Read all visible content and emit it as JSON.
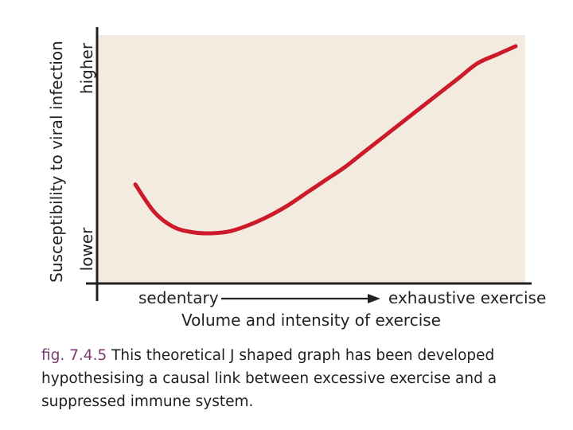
{
  "chart_data": {
    "type": "line",
    "title": "",
    "ylabel": "Susceptibility to viral infection",
    "ylabel_high": "higher",
    "ylabel_low": "lower",
    "xlabel": "Volume and intensity of exercise",
    "xlabel_left": "sedentary",
    "xlabel_right": "exhaustive exercise",
    "xlim": [
      0,
      100
    ],
    "ylim": [
      0,
      100
    ],
    "grid": false,
    "series": [
      {
        "name": "J-shaped curve",
        "color": "#cc1a2a",
        "x": [
          0,
          5,
          10,
          15,
          20,
          25,
          30,
          35,
          40,
          45,
          50,
          55,
          60,
          65,
          70,
          75,
          80,
          85,
          90,
          95,
          100
        ],
        "y": [
          35,
          22,
          15,
          12.5,
          12,
          13,
          16,
          20,
          25,
          31,
          37,
          43,
          50,
          57,
          64,
          71,
          78,
          85,
          92,
          96,
          100
        ]
      }
    ],
    "colors": {
      "background": "#f3ebdf",
      "axis": "#222222",
      "curve": "#cc1a2a"
    }
  },
  "caption": {
    "label": "fig. 7.4.5",
    "text": "This theoretical J shaped graph has been developed hypothesising a causal link between excessive exercise and a suppressed immune system."
  }
}
